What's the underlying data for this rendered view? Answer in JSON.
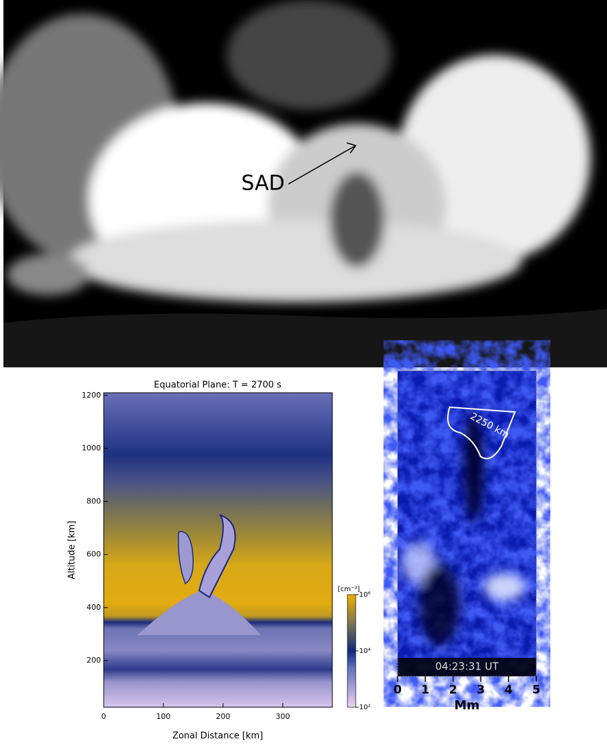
{
  "top_image": {
    "label": "SAD"
  },
  "simulation": {
    "title": "Equatorial Plane: T =  2700 s",
    "xlabel": "Zonal Distance [km]",
    "ylabel": "Altitude [km]",
    "xlim": [
      0,
      383
    ],
    "ylim": [
      24,
      1210
    ],
    "xticks": [
      0,
      100,
      200,
      300
    ],
    "yticks": [
      200,
      400,
      600,
      800,
      1000,
      1200
    ],
    "colorbar": {
      "unit": "[cm⁻³]",
      "log": true,
      "clim": [
        100,
        1000000
      ],
      "ticks": [
        {
          "value": 100,
          "label": "10²"
        },
        {
          "value": 10000,
          "label": "10⁴"
        },
        {
          "value": 1000000,
          "label": "10⁶"
        }
      ]
    }
  },
  "observation": {
    "scale_label": "2250 km",
    "timestamp": "04:23:31 UT",
    "xlabel": "Mm",
    "xlim": [
      0,
      5
    ],
    "xticks": [
      0,
      1,
      2,
      3,
      4,
      5
    ]
  }
}
